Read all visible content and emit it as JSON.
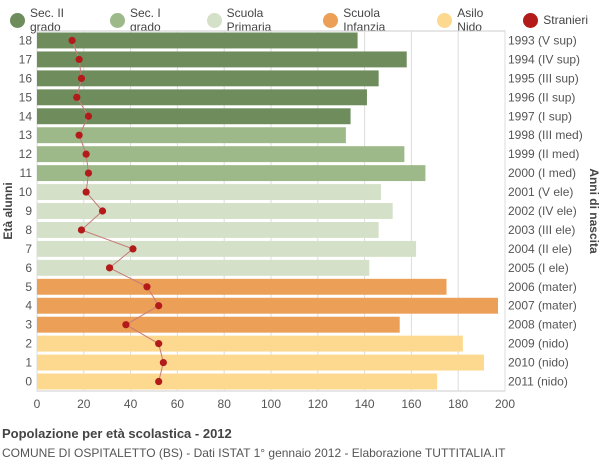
{
  "legend": [
    {
      "label": "Sec. II grado",
      "color": "#6e8c5c"
    },
    {
      "label": "Sec. I grado",
      "color": "#9db98a"
    },
    {
      "label": "Scuola Primaria",
      "color": "#d4e0c7"
    },
    {
      "label": "Scuola Infanzia",
      "color": "#eb9f57"
    },
    {
      "label": "Asilo Nido",
      "color": "#fdd98f"
    },
    {
      "label": "Stranieri",
      "color": "#b31b1b"
    }
  ],
  "footer": {
    "title": "Popolazione per età scolastica - 2012",
    "subtitle": "COMUNE DI OSPITALETTO (BS) - Dati ISTAT 1° gennaio 2012 - Elaborazione TUTTITALIA.IT"
  },
  "chart_data": {
    "type": "bar",
    "orientation": "horizontal",
    "ylabel": "Età alunni",
    "ylabel_right": "Anni di nascita",
    "xlim": [
      0,
      200
    ],
    "x_ticks": [
      0,
      20,
      40,
      60,
      80,
      100,
      120,
      140,
      160,
      180,
      200
    ],
    "grid": true,
    "categories": [
      "18",
      "17",
      "16",
      "15",
      "14",
      "13",
      "12",
      "11",
      "10",
      "9",
      "8",
      "7",
      "6",
      "5",
      "4",
      "3",
      "2",
      "1",
      "0"
    ],
    "birth_years": [
      "1993 (V sup)",
      "1994 (IV sup)",
      "1995 (III sup)",
      "1996 (II sup)",
      "1997 (I sup)",
      "1998 (III med)",
      "1999 (II med)",
      "2000 (I med)",
      "2001 (V ele)",
      "2002 (IV ele)",
      "2003 (III ele)",
      "2004 (II ele)",
      "2005 (I ele)",
      "2006 (mater)",
      "2007 (mater)",
      "2008 (mater)",
      "2009 (nido)",
      "2010 (nido)",
      "2011 (nido)"
    ],
    "school": [
      "Sec. II grado",
      "Sec. II grado",
      "Sec. II grado",
      "Sec. II grado",
      "Sec. II grado",
      "Sec. I grado",
      "Sec. I grado",
      "Sec. I grado",
      "Scuola Primaria",
      "Scuola Primaria",
      "Scuola Primaria",
      "Scuola Primaria",
      "Scuola Primaria",
      "Scuola Infanzia",
      "Scuola Infanzia",
      "Scuola Infanzia",
      "Asilo Nido",
      "Asilo Nido",
      "Asilo Nido"
    ],
    "series": [
      {
        "name": "Popolazione",
        "values": [
          137,
          158,
          146,
          141,
          134,
          132,
          157,
          166,
          147,
          152,
          146,
          162,
          142,
          175,
          197,
          155,
          182,
          191,
          171
        ]
      },
      {
        "name": "Stranieri",
        "values": [
          15,
          18,
          19,
          17,
          22,
          18,
          21,
          22,
          21,
          28,
          19,
          41,
          31,
          47,
          52,
          38,
          52,
          54,
          52
        ]
      }
    ]
  }
}
